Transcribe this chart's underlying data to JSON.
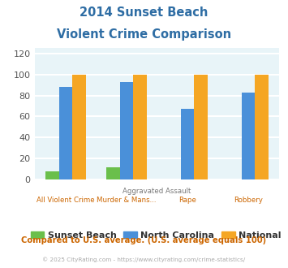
{
  "title_line1": "2014 Sunset Beach",
  "title_line2": "Violent Crime Comparison",
  "sunset_beach": [
    8,
    12,
    0,
    0
  ],
  "north_carolina": [
    88,
    93,
    67,
    83
  ],
  "national": [
    100,
    100,
    100,
    100
  ],
  "colors": {
    "sunset_beach": "#6abf4b",
    "north_carolina": "#4a90d9",
    "national": "#f5a623"
  },
  "ylim": [
    0,
    125
  ],
  "yticks": [
    0,
    20,
    40,
    60,
    80,
    100,
    120
  ],
  "bottom_labels": [
    "All Violent Crime",
    "Murder & Mans...",
    "Rape",
    "Robbery"
  ],
  "top_label": "Aggravated Assault",
  "bg_color": "#e8f4f8",
  "grid_color": "#ffffff",
  "footer_text": "Compared to U.S. average. (U.S. average equals 100)",
  "copyright_text": "© 2025 CityRating.com - https://www.cityrating.com/crime-statistics/",
  "title_color": "#2e6da4",
  "footer_color": "#cc6600",
  "copyright_color": "#aaaaaa",
  "legend_labels": [
    "Sunset Beach",
    "North Carolina",
    "National"
  ]
}
